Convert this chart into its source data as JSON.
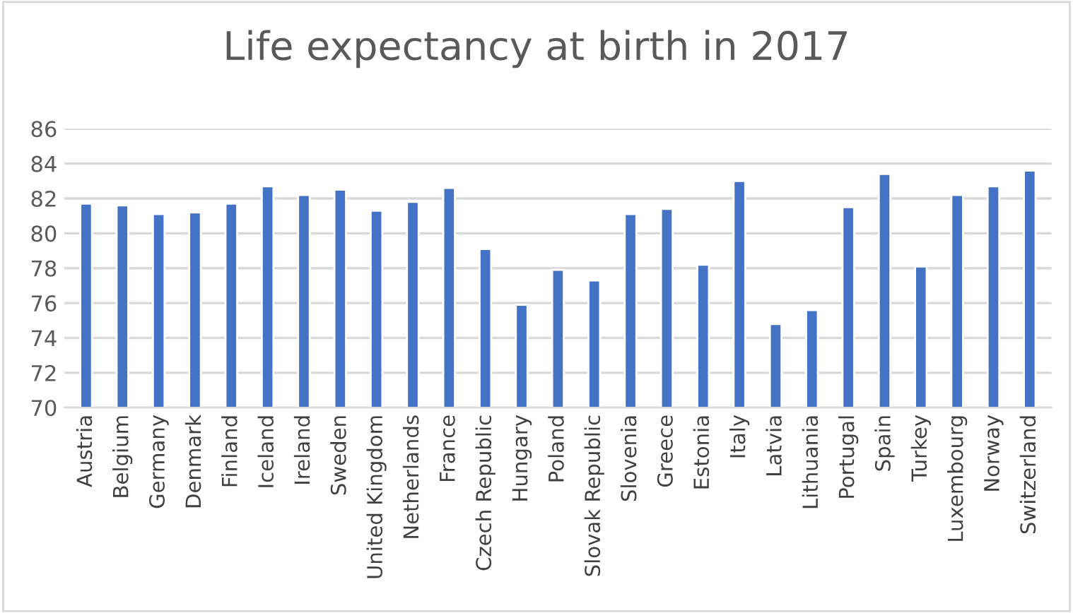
{
  "chart_data": {
    "type": "bar",
    "title": "Life expectancy at birth in 2017",
    "categories": [
      "Austria",
      "Belgium",
      "Germany",
      "Denmark",
      "Finland",
      "Iceland",
      "Ireland",
      "Sweden",
      "United Kingdom",
      "Netherlands",
      "France",
      "Czech Republic",
      "Hungary",
      "Poland",
      "Slovak Republic",
      "Slovenia",
      "Greece",
      "Estonia",
      "Italy",
      "Latvia",
      "Lithuania",
      "Portugal",
      "Spain",
      "Turkey",
      "Luxembourg",
      "Norway",
      "Switzerland"
    ],
    "values": [
      81.7,
      81.6,
      81.1,
      81.2,
      81.7,
      82.7,
      82.2,
      82.5,
      81.3,
      81.8,
      82.6,
      79.1,
      75.9,
      77.9,
      77.3,
      81.1,
      81.4,
      78.2,
      83.0,
      74.8,
      75.6,
      81.5,
      83.4,
      78.1,
      82.2,
      82.7,
      83.6
    ],
    "color": "#4472c4",
    "ylim": [
      70,
      86
    ],
    "yticks": [
      70,
      72,
      74,
      76,
      78,
      80,
      82,
      84,
      86
    ],
    "grid": "y"
  }
}
